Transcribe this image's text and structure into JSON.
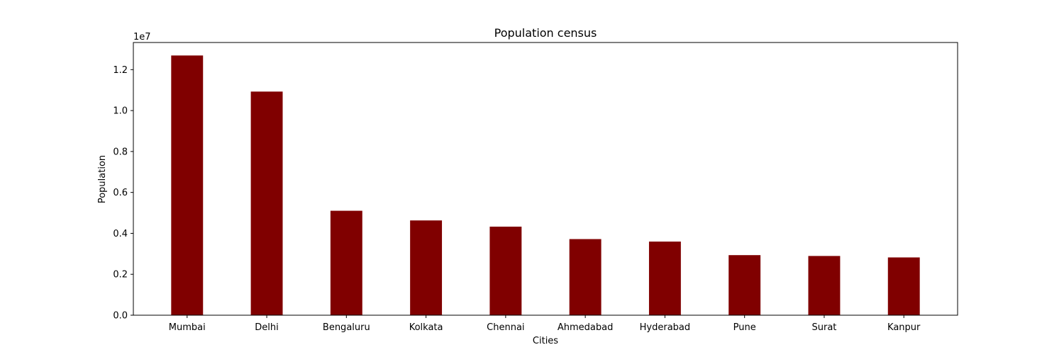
{
  "chart_data": {
    "type": "bar",
    "title": "Population census",
    "xlabel": "Cities",
    "ylabel": "Population",
    "y_multiplier_label": "1e7",
    "categories": [
      "Mumbai",
      "Delhi",
      "Bengaluru",
      "Kolkata",
      "Chennai",
      "Ahmedabad",
      "Hyderabad",
      "Pune",
      "Surat",
      "Kanpur"
    ],
    "values": [
      12691836,
      10927986,
      5104047,
      4631392,
      4328063,
      3719710,
      3597816,
      2935744,
      2894504,
      2823249
    ],
    "ylim": [
      0,
      13326428
    ],
    "yticks": [
      0,
      2000000,
      4000000,
      6000000,
      8000000,
      10000000,
      12000000
    ],
    "ytick_labels": [
      "0.0",
      "0.2",
      "0.4",
      "0.6",
      "0.8",
      "1.0",
      "1.2"
    ],
    "bar_color": "#800000",
    "grid": false,
    "legend": "none"
  }
}
